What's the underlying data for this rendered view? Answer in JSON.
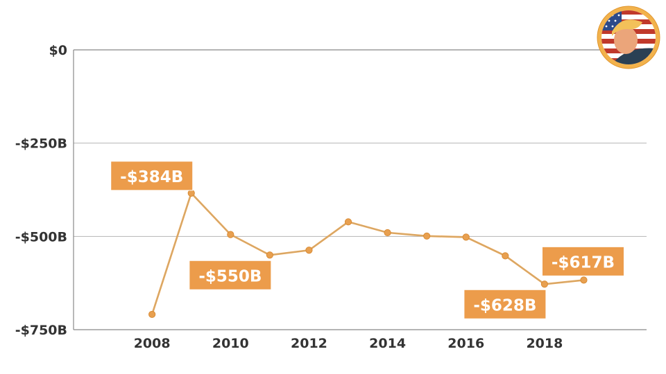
{
  "chart_data": {
    "type": "line",
    "title": "",
    "xlabel": "",
    "ylabel": "",
    "x": [
      2008,
      2009,
      2010,
      2011,
      2012,
      2013,
      2014,
      2015,
      2016,
      2017,
      2018,
      2019
    ],
    "series": [
      {
        "values": [
          -709,
          -384,
          -495,
          -550,
          -537,
          -461,
          -490,
          -499,
          -502,
          -552,
          -628,
          -617
        ]
      }
    ],
    "xlim": [
      2006,
      2020.6
    ],
    "ylim": [
      -750,
      0
    ],
    "x_ticks": [
      {
        "value": 2008,
        "label": "2008"
      },
      {
        "value": 2010,
        "label": "2010"
      },
      {
        "value": 2012,
        "label": "2012"
      },
      {
        "value": 2014,
        "label": "2014"
      },
      {
        "value": 2016,
        "label": "2016"
      },
      {
        "value": 2018,
        "label": "2018"
      }
    ],
    "y_ticks": [
      {
        "value": 0,
        "label": "$0"
      },
      {
        "value": -250,
        "label": "-$250B"
      },
      {
        "value": -500,
        "label": "-$500B"
      },
      {
        "value": -750,
        "label": "-$750B"
      }
    ],
    "grid": true,
    "annotations": [
      {
        "x": 2009,
        "y": -384,
        "label": "-$384B",
        "placement": "upper-left"
      },
      {
        "x": 2011,
        "y": -550,
        "label": "-$550B",
        "placement": "lower-left"
      },
      {
        "x": 2018,
        "y": -628,
        "label": "-$628B",
        "placement": "lower-left"
      },
      {
        "x": 2019,
        "y": -617,
        "label": "-$617B",
        "placement": "upper-right"
      }
    ],
    "colors": {
      "line": "#e8a050",
      "callout": "#ec9c4b",
      "callout_text": "#ffffff",
      "grid": "#b5b5b5",
      "tick_text": "#333333"
    }
  },
  "badge": {
    "icon": "portrait-badge-icon",
    "ring_color": "#f2b24c",
    "flag_colors": [
      "#c0392b",
      "#ffffff",
      "#2c4a8a"
    ]
  }
}
